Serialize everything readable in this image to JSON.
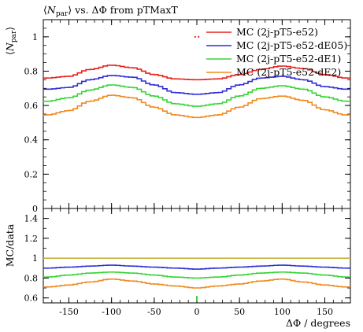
{
  "chart_data": {
    "type": "line",
    "title": "⟨N_par⟩ vs. ΔΦ from pTMaxT",
    "title_parts": {
      "lang": "⟨",
      "n": "N",
      "sub": "par",
      "rang": "⟩",
      "rest": " vs. ΔΦ from pTMaxT"
    },
    "xlabel": "ΔΦ / degrees",
    "ylabel_top_parts": {
      "lang": "⟨",
      "n": "N",
      "sub": "par",
      "rang": "⟩"
    },
    "ylabel_ratio": "MC/data",
    "xlim": [
      -180,
      180
    ],
    "x_ticks": [
      -150,
      -100,
      -50,
      0,
      50,
      100,
      150
    ],
    "top_panel": {
      "ylim": [
        0,
        1.1
      ],
      "y_ticks": [
        0,
        0.2,
        0.4,
        0.6,
        0.8,
        1
      ],
      "y_tick_labels": [
        "0",
        "0.2",
        "0.4",
        "0.6",
        "0.8",
        "1"
      ]
    },
    "ratio_panel": {
      "ylim": [
        0.55,
        1.5
      ],
      "y_ticks": [
        0.6,
        0.8,
        1,
        1.2,
        1.4
      ],
      "y_tick_labels": [
        "0.6",
        "0.8",
        "1",
        "1.2",
        "1.4"
      ],
      "reference_line": 1.0
    },
    "legend_position": "top-right",
    "data_points": [
      {
        "x": -2,
        "y": 1.0
      },
      {
        "x": 2,
        "y": 1.0
      }
    ],
    "series": [
      {
        "name": "MC (2j-pT5-e52)",
        "color": "#e8211c",
        "x": [
          -175,
          -150,
          -125,
          -100,
          -75,
          -50,
          -25,
          0,
          25,
          50,
          75,
          100,
          125,
          150,
          175
        ],
        "y": [
          0.76,
          0.77,
          0.81,
          0.835,
          0.82,
          0.78,
          0.755,
          0.75,
          0.755,
          0.78,
          0.81,
          0.83,
          0.815,
          0.78,
          0.76
        ],
        "ratio": [
          1.0,
          1.0,
          1.0,
          1.0,
          1.0,
          1.0,
          1.0,
          1.0,
          1.0,
          1.0,
          1.0,
          1.0,
          1.0,
          1.0,
          1.0
        ]
      },
      {
        "name": "MC (2j-pT5-e52-dE05)",
        "color": "#2f2fd6",
        "x": [
          -175,
          -150,
          -125,
          -100,
          -75,
          -50,
          -25,
          0,
          25,
          50,
          75,
          100,
          125,
          150,
          175
        ],
        "y": [
          0.695,
          0.705,
          0.75,
          0.775,
          0.765,
          0.72,
          0.675,
          0.665,
          0.675,
          0.72,
          0.76,
          0.77,
          0.75,
          0.71,
          0.695
        ],
        "ratio": [
          0.9,
          0.91,
          0.92,
          0.93,
          0.92,
          0.91,
          0.9,
          0.89,
          0.9,
          0.91,
          0.92,
          0.93,
          0.92,
          0.91,
          0.9
        ]
      },
      {
        "name": "MC (2j-pT5-e52-dE1)",
        "color": "#35d535",
        "x": [
          -175,
          -150,
          -125,
          -100,
          -75,
          -50,
          -25,
          0,
          25,
          50,
          75,
          100,
          125,
          150,
          175
        ],
        "y": [
          0.625,
          0.645,
          0.69,
          0.72,
          0.705,
          0.655,
          0.61,
          0.595,
          0.61,
          0.655,
          0.7,
          0.715,
          0.695,
          0.65,
          0.625
        ],
        "ratio": [
          0.81,
          0.83,
          0.85,
          0.86,
          0.85,
          0.83,
          0.81,
          0.8,
          0.81,
          0.83,
          0.85,
          0.86,
          0.85,
          0.83,
          0.81
        ]
      },
      {
        "name": "MC (2j-pT5-e52-dE2)",
        "color": "#f08a1d",
        "x": [
          -175,
          -150,
          -125,
          -100,
          -75,
          -50,
          -25,
          0,
          25,
          50,
          75,
          100,
          125,
          150,
          175
        ],
        "y": [
          0.545,
          0.57,
          0.625,
          0.66,
          0.645,
          0.59,
          0.545,
          0.53,
          0.545,
          0.59,
          0.64,
          0.655,
          0.63,
          0.575,
          0.545
        ],
        "ratio": [
          0.71,
          0.73,
          0.76,
          0.79,
          0.77,
          0.74,
          0.72,
          0.7,
          0.72,
          0.74,
          0.77,
          0.79,
          0.76,
          0.73,
          0.71
        ]
      }
    ]
  }
}
